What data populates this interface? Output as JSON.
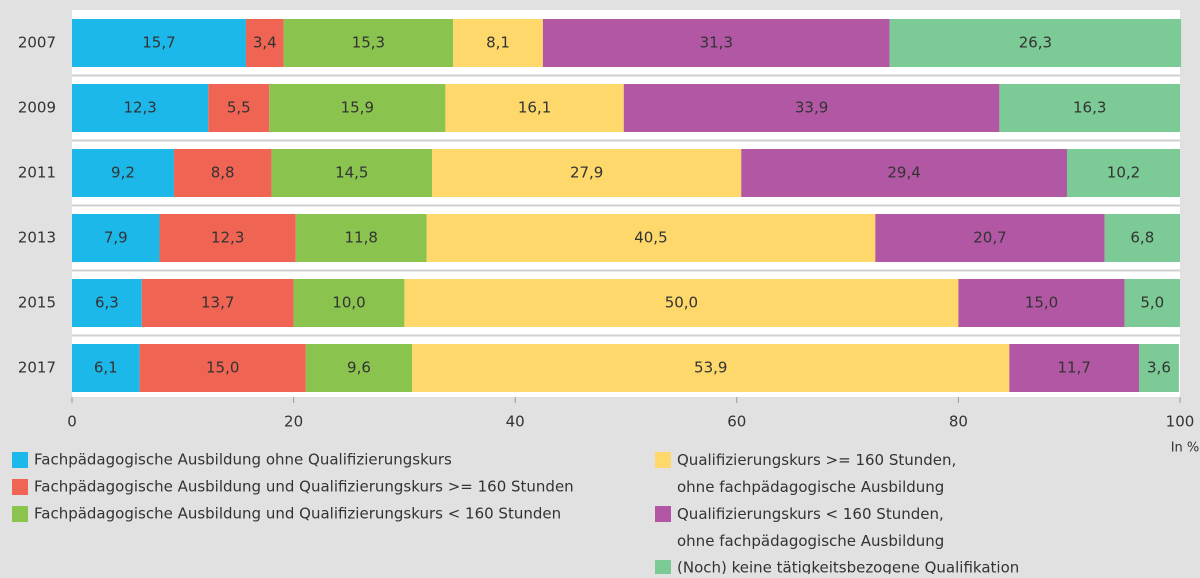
{
  "chart_data": {
    "type": "stacked_barh",
    "categories": [
      "2007",
      "2009",
      "2011",
      "2013",
      "2015",
      "2017"
    ],
    "series": [
      {
        "name": "Fachpädagogische Ausbildung ohne Qualifizierungskurs",
        "color": "#1db8ea",
        "label_color": "#ffffff",
        "values": [
          15.7,
          12.3,
          9.2,
          7.9,
          6.3,
          6.1
        ],
        "value_labels": [
          "15,7",
          "12,3",
          "9,2",
          "7,9",
          "6,3",
          "6,1"
        ]
      },
      {
        "name": "Fachpädagogische Ausbildung und Qualifizierungskurs >= 160 Stunden",
        "color": "#f06453",
        "label_color": "#ffffff",
        "values": [
          3.4,
          5.5,
          8.8,
          12.3,
          13.7,
          15.0
        ],
        "value_labels": [
          "3,4",
          "5,5",
          "8,8",
          "12,3",
          "13,7",
          "15,0"
        ]
      },
      {
        "name": "Fachpädagogische Ausbildung und Qualifizierungskurs < 160 Stunden",
        "color": "#8bc34f",
        "label_color": "#ffffff",
        "values": [
          15.3,
          15.9,
          14.5,
          11.8,
          10.0,
          9.6
        ],
        "value_labels": [
          "15,3",
          "15,9",
          "14,5",
          "11,8",
          "10,0",
          "9,6"
        ]
      },
      {
        "name": "Qualifizierungskurs >= 160 Stunden,\nohne fachpädagogische Ausbildung",
        "color": "#fed86b",
        "label_color": "#222222",
        "values": [
          8.1,
          16.1,
          27.9,
          40.5,
          50.0,
          53.9
        ],
        "value_labels": [
          "8,1",
          "16,1",
          "27,9",
          "40,5",
          "50,0",
          "53,9"
        ]
      },
      {
        "name": "Qualifizierungskurs < 160 Stunden,\nohne fachpädagogische Ausbildung",
        "color": "#b157a4",
        "label_color": "#ffffff",
        "values": [
          31.3,
          33.9,
          29.4,
          20.7,
          15.0,
          11.7
        ],
        "value_labels": [
          "31,3",
          "33,9",
          "29,4",
          "20,7",
          "15,0",
          "11,7"
        ]
      },
      {
        "name": "(Noch) keine tätigkeitsbezogene Qualifikation",
        "color": "#7cca96",
        "label_color": "#ffffff",
        "values": [
          26.3,
          16.3,
          10.2,
          6.8,
          5.0,
          3.6
        ],
        "value_labels": [
          "26,3",
          "16,3",
          "10,2",
          "6,8",
          "5,0",
          "3,6"
        ]
      }
    ],
    "xlim": [
      0,
      100
    ],
    "xticks": [
      0,
      20,
      40,
      60,
      80,
      100
    ],
    "xlabel": "In %"
  }
}
